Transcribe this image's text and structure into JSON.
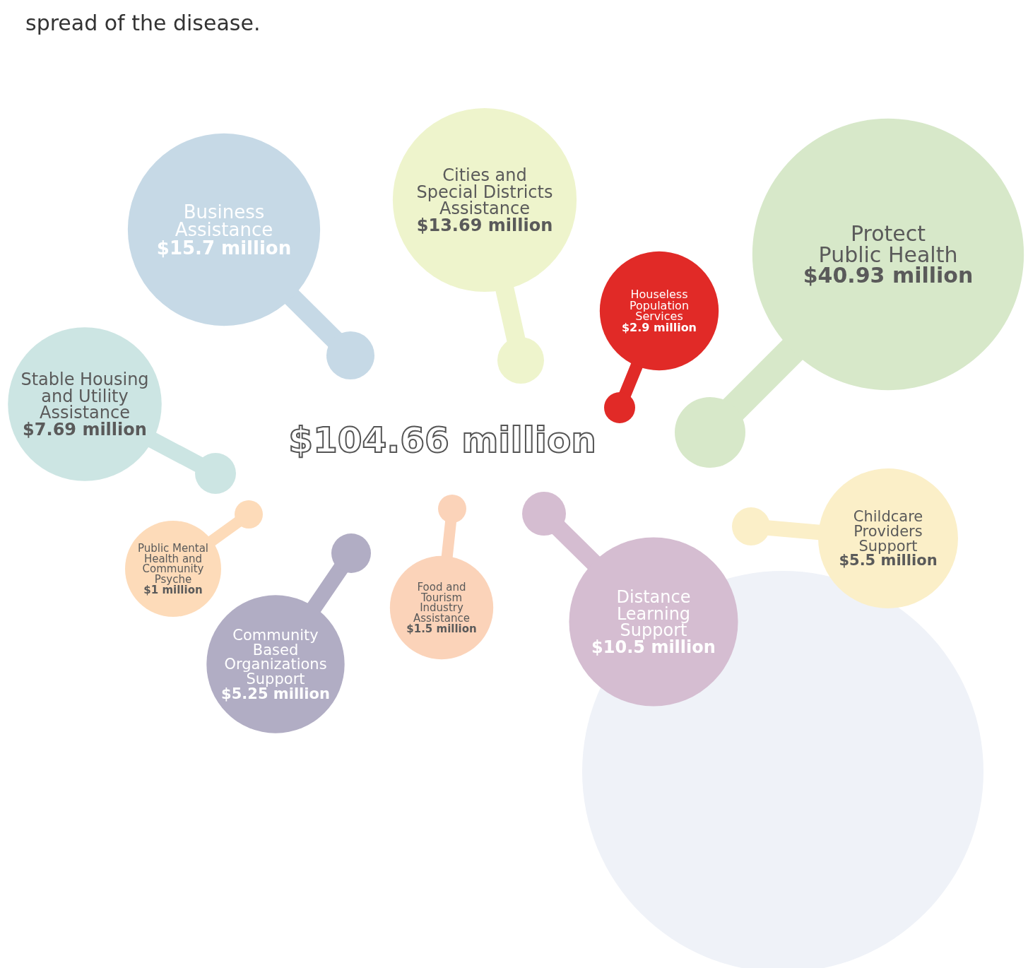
{
  "chart_data": {
    "type": "other",
    "title": "$104.66 million",
    "annotations": [
      "spread of the disease."
    ],
    "categories": [
      "Business\nAssistance",
      "Cities and\nSpecial Districts\nAssistance",
      "Houseless\nPopulation\nServices",
      "Protect\nPublic Health",
      "Stable Housing\nand Utility\nAssistance",
      "Public Mental\nHealth and\nCommunity\nPsyche",
      "Community\nBased\nOrganizations\nSupport",
      "Food and\nTourism\nIndustry\nAssistance",
      "Distance\nLearning\nSupport",
      "Childcare\nProviders\nSupport"
    ],
    "values": [
      15.7,
      13.69,
      2.9,
      40.93,
      7.69,
      1,
      5.25,
      1.5,
      10.5,
      5.5
    ],
    "value_labels": [
      "$15.7 million",
      "$13.69 million",
      "$2.9 million",
      "$40.93 million",
      "$7.69 million",
      "$1 million",
      "$5.25 million",
      "$1.5 million",
      "$10.5 million",
      "$5.5 million"
    ],
    "colors": [
      "#c6d9e6",
      "#eef4cc",
      "#e12a27",
      "#d7e8c9",
      "#cce5e3",
      "#fddbb9",
      "#b1adc4",
      "#fbd3b9",
      "#d5bdd1",
      "#fbefc8"
    ]
  }
}
